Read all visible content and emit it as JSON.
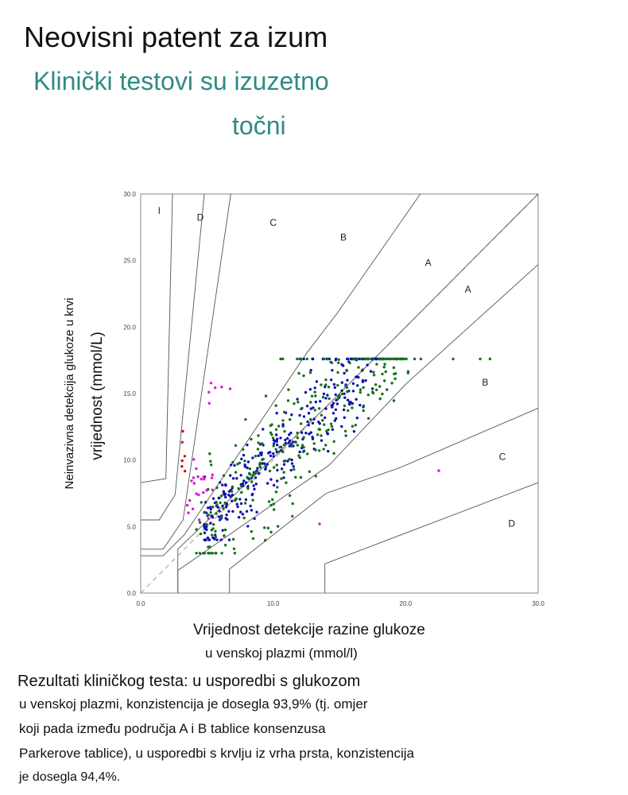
{
  "header": {
    "title": "Neovisni patent za izum",
    "subtitle_line1": "Klinički testovi su izuzetno",
    "subtitle_line2": "točni"
  },
  "chart_data": {
    "type": "scatter",
    "title": "",
    "xlabel_line1": "Vrijednost detekcije razine glukoze",
    "xlabel_line2": "u venskoj plazmi (mmol/l)",
    "ylabel_line1": "Neinvazivna detekcija glukoze u krvi",
    "ylabel_line2": "vrijednost (mmol/L)",
    "xlim": [
      0,
      30
    ],
    "ylim": [
      0,
      30
    ],
    "x_ticks": [
      "0.0",
      "10.0",
      "20.0",
      "30.0"
    ],
    "y_ticks": [
      "0.0",
      "5.0",
      "10.0",
      "15.0",
      "20.0",
      "25.0",
      "30.0"
    ],
    "zone_labels": [
      {
        "text": "I",
        "x": 1.4,
        "y": 28.5
      },
      {
        "text": "D",
        "x": 4.5,
        "y": 28.0
      },
      {
        "text": "C",
        "x": 10.0,
        "y": 27.6
      },
      {
        "text": "B",
        "x": 15.3,
        "y": 26.5
      },
      {
        "text": "A",
        "x": 21.7,
        "y": 24.6
      },
      {
        "text": "A",
        "x": 24.7,
        "y": 22.6
      },
      {
        "text": "B",
        "x": 26.0,
        "y": 15.6
      },
      {
        "text": "C",
        "x": 27.3,
        "y": 10.0
      },
      {
        "text": "D",
        "x": 28.0,
        "y": 5.0
      }
    ],
    "zone_lines": [
      [
        [
          0,
          8.3
        ],
        [
          1.9,
          8.6
        ],
        [
          2.4,
          30
        ]
      ],
      [
        [
          0,
          5.5
        ],
        [
          1.4,
          5.5
        ],
        [
          2.6,
          7.4
        ],
        [
          4.8,
          30
        ]
      ],
      [
        [
          0,
          3.3
        ],
        [
          1.7,
          3.3
        ],
        [
          3.2,
          5.5
        ],
        [
          6.8,
          30
        ]
      ],
      [
        [
          0,
          2.8
        ],
        [
          1.7,
          2.8
        ],
        [
          3.3,
          4.4
        ],
        [
          12.5,
          18.0
        ],
        [
          14.8,
          21.0
        ],
        [
          21.1,
          30
        ]
      ],
      [
        [
          0,
          0
        ],
        [
          30,
          30
        ]
      ],
      [
        [
          2.8,
          0
        ],
        [
          2.8,
          3.3
        ],
        [
          14.2,
          14.2
        ],
        [
          30,
          30
        ]
      ],
      [
        [
          2.8,
          0
        ],
        [
          2.8,
          1.7
        ],
        [
          14.2,
          9.6
        ],
        [
          20.0,
          15.7
        ],
        [
          30,
          24.7
        ]
      ],
      [
        [
          6.7,
          0
        ],
        [
          6.7,
          1.8
        ],
        [
          14.0,
          7.5
        ],
        [
          19.5,
          9.4
        ],
        [
          30,
          13.9
        ]
      ],
      [
        [
          13.9,
          0
        ],
        [
          13.9,
          2.2
        ],
        [
          30,
          8.3
        ]
      ]
    ],
    "series": [
      {
        "color": "#1010b0",
        "count": 320,
        "x_range": [
          4,
          20.5
        ],
        "y_range": [
          4,
          17.6
        ]
      },
      {
        "color": "#167016",
        "count": 290,
        "x_range": [
          3.8,
          30
        ],
        "y_range": [
          3,
          17.6
        ]
      },
      {
        "color": "#d418d4",
        "count": 30,
        "x_range": [
          2.5,
          25
        ],
        "y_range": [
          4,
          16
        ]
      },
      {
        "color": "#cc1010",
        "count": 6,
        "x_range": [
          3.1,
          3.4
        ],
        "y_range": [
          8.7,
          12.5
        ]
      }
    ]
  },
  "description": {
    "lines": [
      "Rezultati kliničkog testa: u usporedbi s glukozom",
      "u venskoj plazmi, konzistencija je dosegla 93,9% (tj. omjer",
      "koji pada između područja A i B tablice konsenzusa",
      "Parkerove tablice), u usporedbi s krvlju iz vrha prsta, konzistencija",
      "je dosegla 94,4%."
    ]
  }
}
